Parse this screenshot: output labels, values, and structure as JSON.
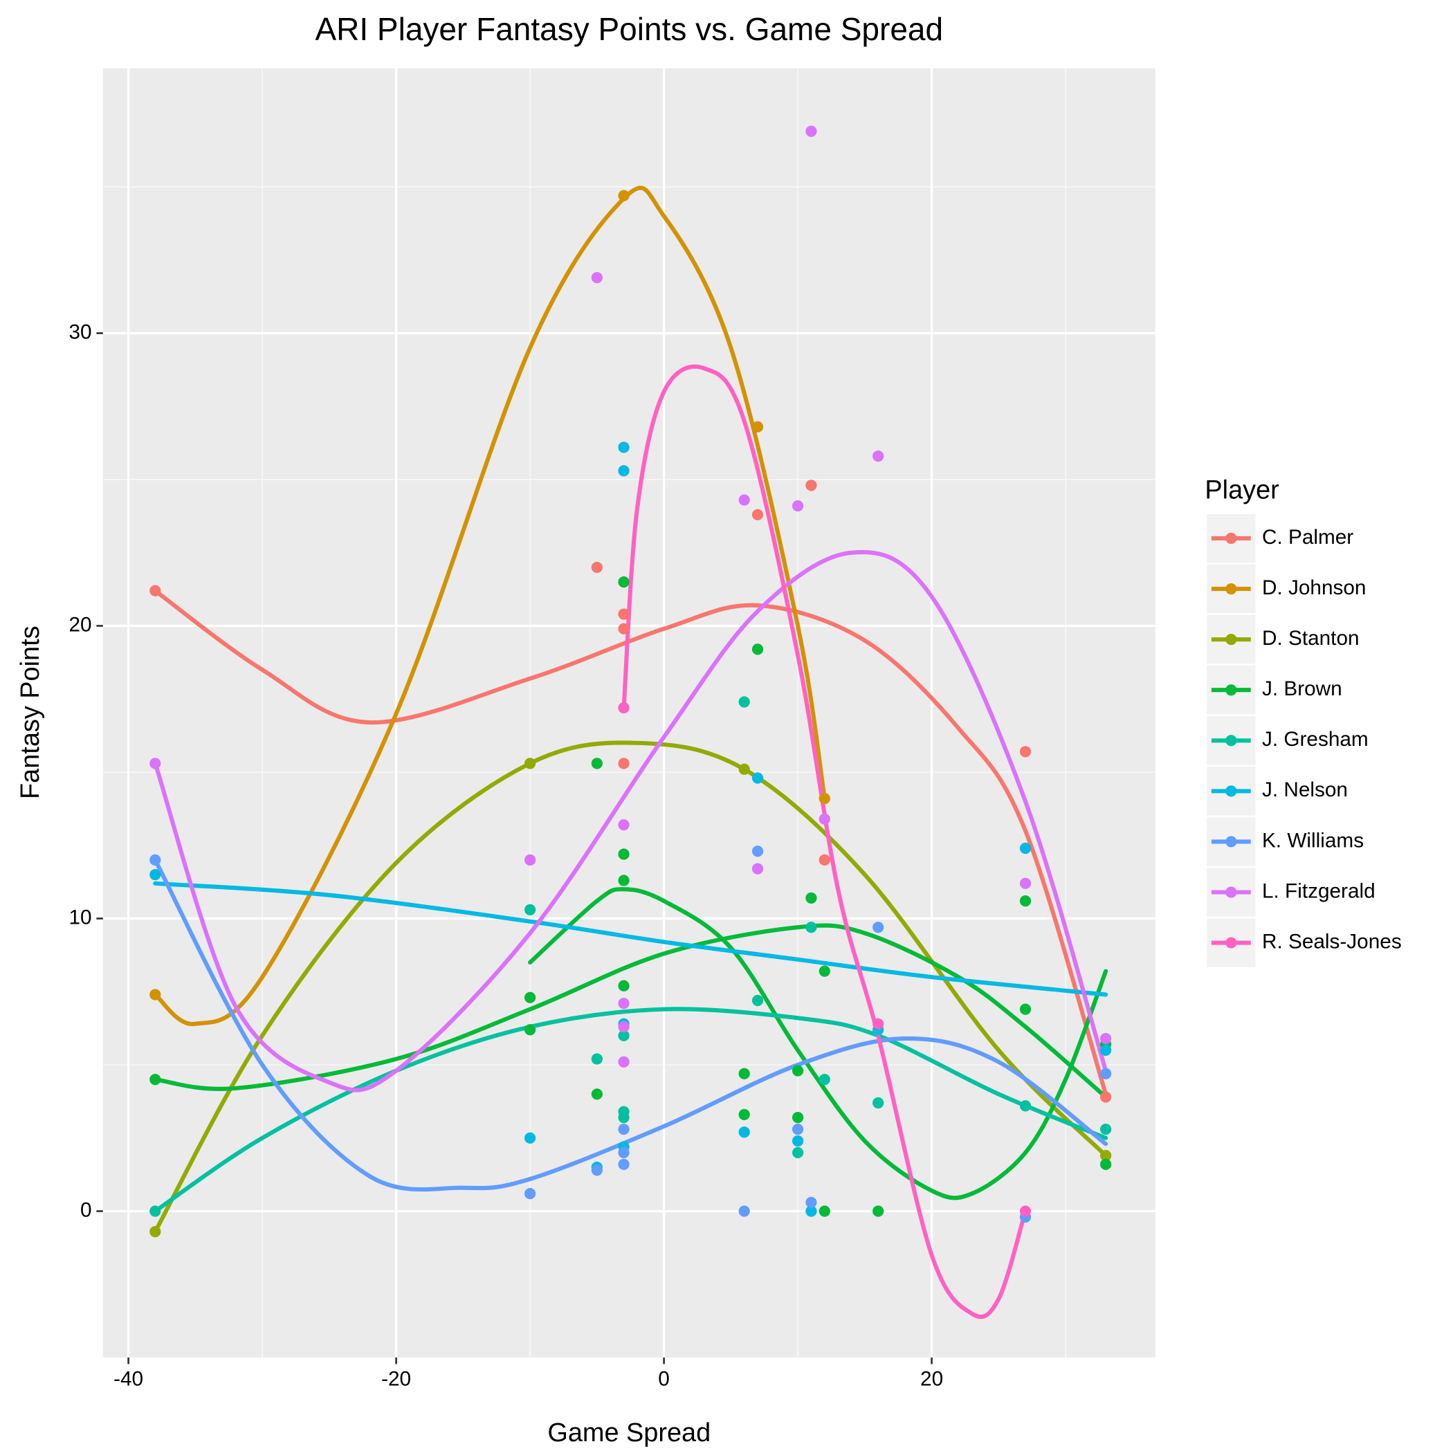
{
  "chart_data": {
    "type": "scatter",
    "title": "ARI Player Fantasy Points vs. Game Spread",
    "xlabel": "Game Spread",
    "ylabel": "Fantasy Points",
    "legend_title": "Player",
    "legend": "right",
    "grid": true,
    "xlim": [
      -41.9,
      36.7
    ],
    "ylim": [
      -5,
      39.05
    ],
    "xticks": [
      -40,
      -20,
      0,
      20
    ],
    "yticks": [
      0,
      10,
      20,
      30
    ],
    "xminor": [
      -30,
      -10,
      10,
      30
    ],
    "yminor": [
      5,
      15,
      25,
      35
    ],
    "series": [
      {
        "name": "C. Palmer",
        "color": "#F8766D",
        "x": [
          -38,
          -5,
          -3,
          -3,
          -3,
          7,
          11,
          12,
          27,
          33
        ],
        "values": [
          21.2,
          22.0,
          20.4,
          19.9,
          15.3,
          23.8,
          24.8,
          12.0,
          15.7,
          3.9
        ],
        "trend_x": [
          -38,
          -30,
          -22,
          -10,
          0,
          7,
          15,
          22,
          27,
          33
        ],
        "trend_values": [
          21.2,
          18.5,
          16.7,
          18.2,
          19.9,
          20.7,
          19.5,
          16.5,
          13,
          4
        ]
      },
      {
        "name": "D. Johnson",
        "color": "#D39200",
        "x": [
          -38,
          -3,
          7,
          12
        ],
        "values": [
          7.4,
          34.7,
          26.8,
          14.1
        ],
        "trend_x": [
          -38,
          -35,
          -30,
          -20,
          -10,
          -3,
          0,
          5,
          10,
          12
        ],
        "trend_values": [
          7.4,
          6.4,
          8,
          17,
          29.5,
          34.6,
          34,
          29.5,
          20,
          14.1
        ]
      },
      {
        "name": "D. Stanton",
        "color": "#93AA00",
        "x": [
          -38,
          -10,
          6,
          33
        ],
        "values": [
          -0.7,
          15.3,
          15.1,
          1.9
        ],
        "trend_x": [
          -38,
          -30,
          -20,
          -10,
          -2,
          6,
          15,
          25,
          33
        ],
        "trend_values": [
          -0.7,
          6,
          11.9,
          15.3,
          16,
          15.1,
          11.5,
          5.5,
          1.9
        ]
      },
      {
        "name": "J. Brown",
        "color": "#00BA38",
        "x": [
          -38,
          -10,
          -10,
          -5,
          -5,
          -3,
          -3,
          -3,
          -3,
          6,
          6,
          7,
          10,
          10,
          11,
          12,
          12,
          16,
          27,
          27,
          33,
          33
        ],
        "values": [
          4.5,
          7.3,
          6.2,
          15.3,
          4.0,
          21.5,
          12.2,
          11.3,
          7.7,
          4.7,
          3.3,
          19.2,
          3.2,
          4.8,
          10.7,
          8.2,
          0,
          0,
          10.6,
          6.9,
          5.7,
          1.6
        ],
        "trend_x": [
          -38,
          -32,
          -20,
          -10,
          0,
          10,
          15,
          22,
          27,
          33,
          null,
          -10,
          -5,
          -3,
          0,
          5,
          10,
          15,
          20,
          23,
          27,
          30,
          33
        ],
        "trend_values": [
          4.5,
          4.2,
          5.2,
          6.9,
          8.8,
          9.7,
          9.5,
          8,
          6.3,
          3.9,
          null,
          8.5,
          10.6,
          11,
          10.6,
          9,
          5.5,
          2.4,
          0.7,
          0.6,
          2,
          4.5,
          8.2
        ]
      },
      {
        "name": "J. Gresham",
        "color": "#00C19F",
        "x": [
          -38,
          -10,
          -5,
          -3,
          -3,
          -3,
          6,
          7,
          10,
          11,
          12,
          16,
          27,
          33
        ],
        "values": [
          0,
          10.3,
          5.2,
          6.0,
          3.4,
          3.2,
          17.4,
          7.2,
          2.0,
          9.7,
          4.5,
          3.7,
          3.6,
          2.8
        ],
        "trend_x": [
          -38,
          -30,
          -20,
          -10,
          0,
          10,
          16,
          25,
          33
        ],
        "trend_values": [
          0,
          2.5,
          4.8,
          6.3,
          6.9,
          6.6,
          6,
          4,
          2.5
        ]
      },
      {
        "name": "J. Nelson",
        "color": "#00B9E3",
        "x": [
          -38,
          -10,
          -5,
          -3,
          -3,
          -3,
          -3,
          6,
          7,
          10,
          11,
          16,
          27,
          33
        ],
        "values": [
          11.5,
          2.5,
          1.5,
          26.1,
          25.3,
          6.4,
          2.2,
          2.7,
          14.8,
          2.4,
          0,
          6.2,
          12.4,
          5.5
        ],
        "trend_x": [
          -38,
          -25,
          -10,
          0,
          10,
          20,
          33
        ],
        "trend_values": [
          11.2,
          10.8,
          9.9,
          9.2,
          8.6,
          8,
          7.4
        ]
      },
      {
        "name": "K. Williams",
        "color": "#619CFF",
        "x": [
          -38,
          -10,
          -5,
          -3,
          -3,
          -3,
          6,
          7,
          10,
          11,
          16,
          27,
          33
        ],
        "values": [
          12.0,
          0.6,
          1.4,
          2.8,
          2.0,
          1.6,
          0,
          12.3,
          2.8,
          0.3,
          9.7,
          -0.2,
          4.7
        ],
        "trend_x": [
          -38,
          -30,
          -22,
          -15,
          -10,
          0,
          10,
          18,
          25,
          33
        ],
        "trend_values": [
          12,
          5,
          1.2,
          0.8,
          1.1,
          2.9,
          5,
          5.9,
          5.1,
          2.3
        ]
      },
      {
        "name": "L. Fitzgerald",
        "color": "#DB72FB",
        "x": [
          -38,
          -10,
          -5,
          -3,
          -3,
          -3,
          -3,
          6,
          7,
          10,
          11,
          12,
          16,
          27,
          33
        ],
        "values": [
          15.3,
          12.0,
          31.9,
          13.2,
          7.1,
          5.1,
          6.3,
          24.3,
          11.7,
          24.1,
          36.9,
          13.4,
          25.8,
          11.2,
          5.9
        ],
        "trend_x": [
          -38,
          -32,
          -25,
          -20,
          -10,
          0,
          7,
          14,
          20,
          27,
          33
        ],
        "trend_values": [
          15.3,
          7,
          4.4,
          4.8,
          9.5,
          16.2,
          20.5,
          22.5,
          21,
          14,
          4.8
        ]
      },
      {
        "name": "R. Seals-Jones",
        "color": "#FF61C3",
        "x": [
          -3,
          16,
          27
        ],
        "values": [
          17.2,
          6.4,
          0
        ],
        "trend_x": [
          -3,
          -2,
          0,
          3,
          6,
          10,
          13,
          16,
          20,
          23,
          25,
          27
        ],
        "trend_values": [
          17.2,
          24,
          28,
          28.8,
          27,
          19,
          11,
          6,
          -1.5,
          -3.5,
          -3,
          0
        ]
      }
    ]
  }
}
